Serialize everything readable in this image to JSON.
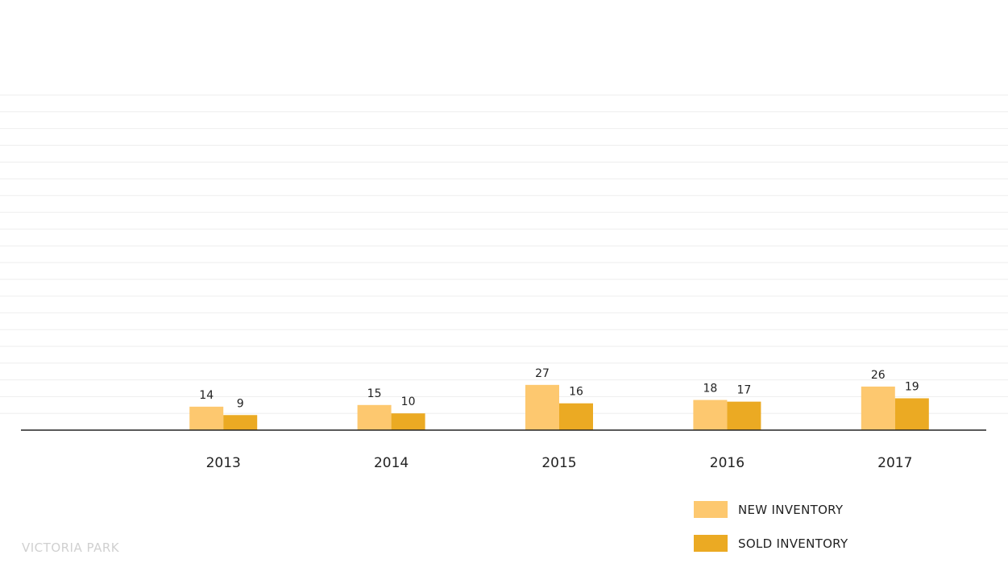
{
  "caption": "VICTORIA PARK",
  "colors": {
    "new": "#fdc86f",
    "sold": "#ebaa23",
    "axis": "#222222",
    "grid": "#eeeeee"
  },
  "legend": [
    {
      "key": "new",
      "label": "NEW INVENTORY"
    },
    {
      "key": "sold",
      "label": "SOLD INVENTORY"
    }
  ],
  "chart_data": {
    "type": "bar",
    "categories": [
      "2013",
      "2014",
      "2015",
      "2016",
      "2017"
    ],
    "series": [
      {
        "name": "NEW INVENTORY",
        "values": [
          14,
          15,
          27,
          18,
          26
        ]
      },
      {
        "name": "SOLD INVENTORY",
        "values": [
          9,
          10,
          16,
          17,
          19
        ]
      }
    ],
    "ylim": [
      0,
      200
    ],
    "grid": true,
    "legend_position": "bottom-right"
  }
}
